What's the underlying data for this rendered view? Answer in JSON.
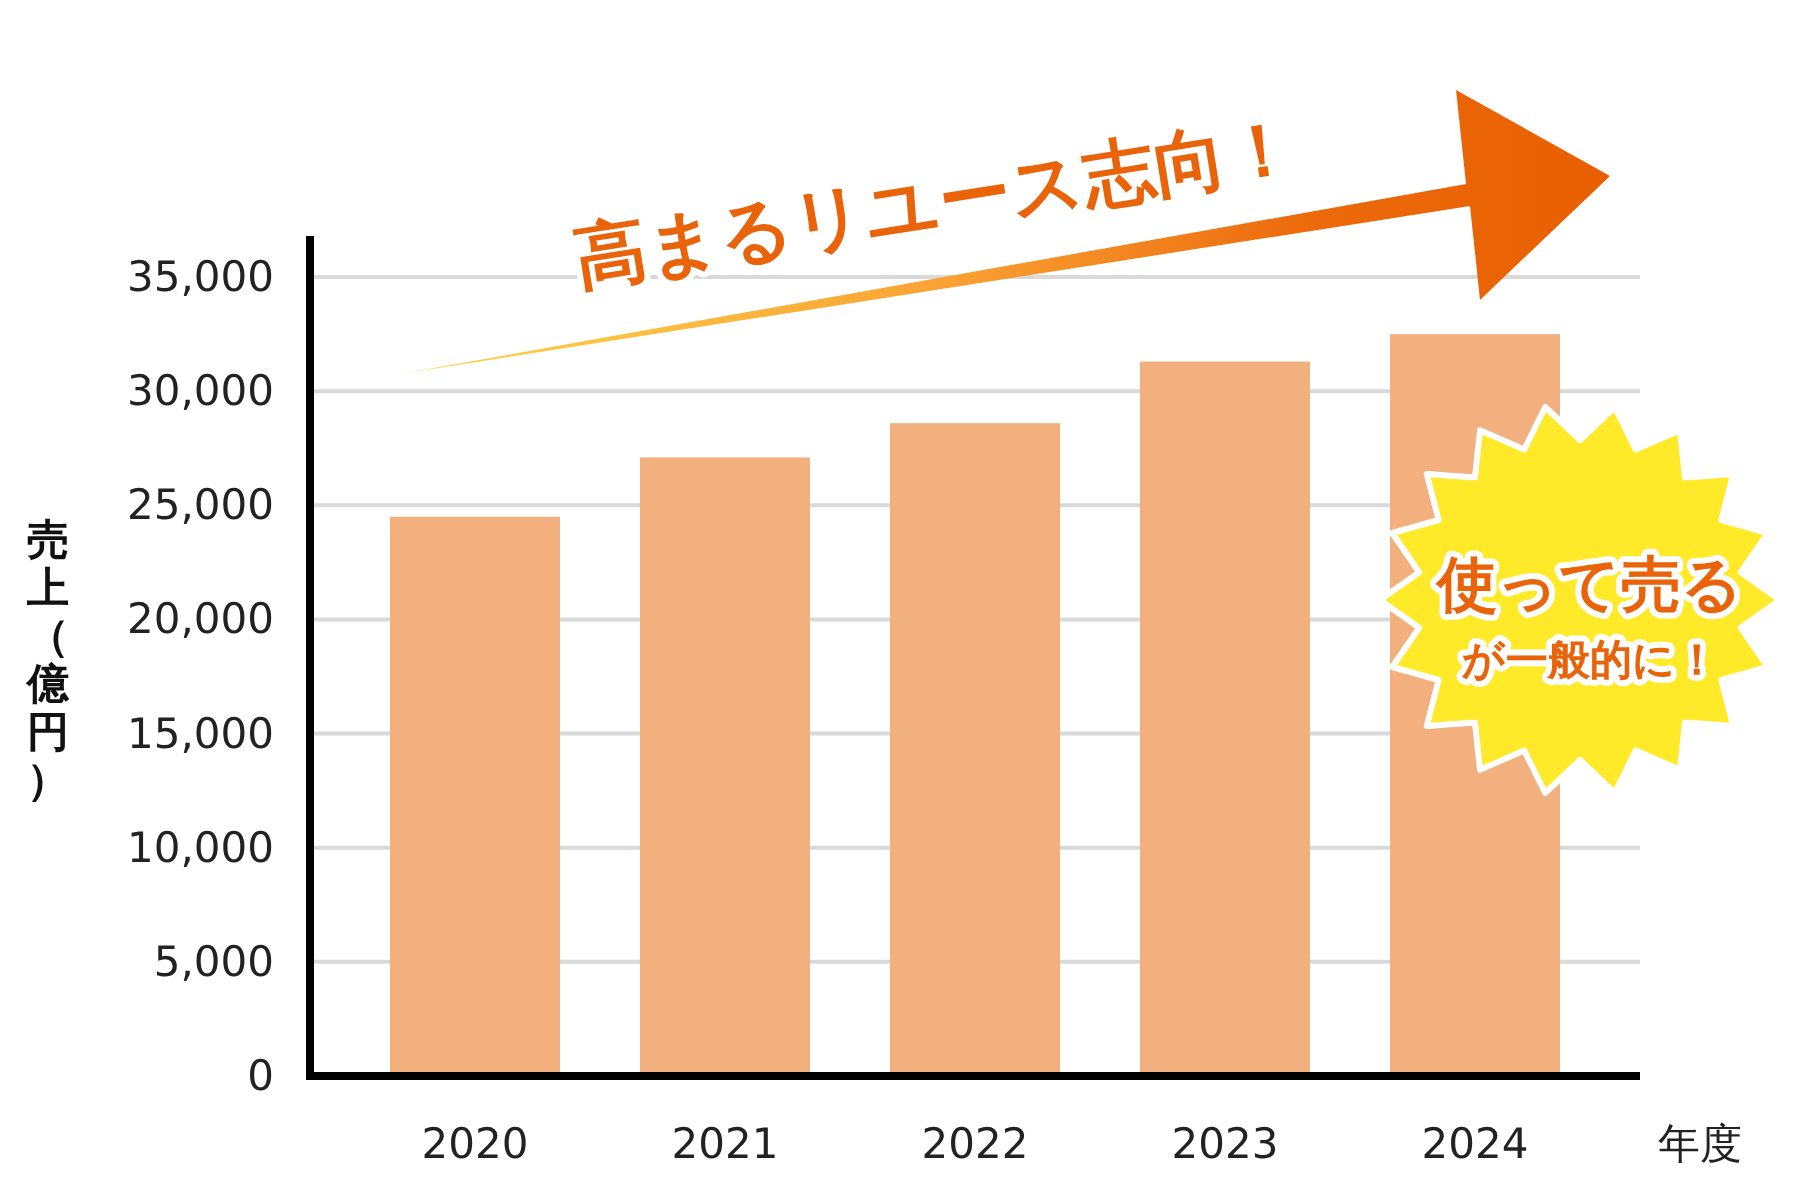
{
  "chart_data": {
    "type": "bar",
    "ylabel": "売上（億円）",
    "xlabel": "年度",
    "categories": [
      "2020",
      "2021",
      "2022",
      "2023",
      "2024"
    ],
    "values": [
      24500,
      27100,
      28600,
      31300,
      32500
    ],
    "color": "#f3b07f",
    "ylim": [
      0,
      36800
    ],
    "yticks": [
      {
        "value": 0,
        "label": "0"
      },
      {
        "value": 5000,
        "label": "5,000"
      },
      {
        "value": 10000,
        "label": "10,000"
      },
      {
        "value": 15000,
        "label": "15,000"
      },
      {
        "value": 20000,
        "label": "20,000"
      },
      {
        "value": 25000,
        "label": "25,000"
      },
      {
        "value": 30000,
        "label": "30,000"
      },
      {
        "value": 35000,
        "label": "35,000"
      }
    ],
    "grid": "y",
    "annotations": [
      "高まるリユース志向！",
      "使って売る",
      "が一般的に！"
    ]
  }
}
